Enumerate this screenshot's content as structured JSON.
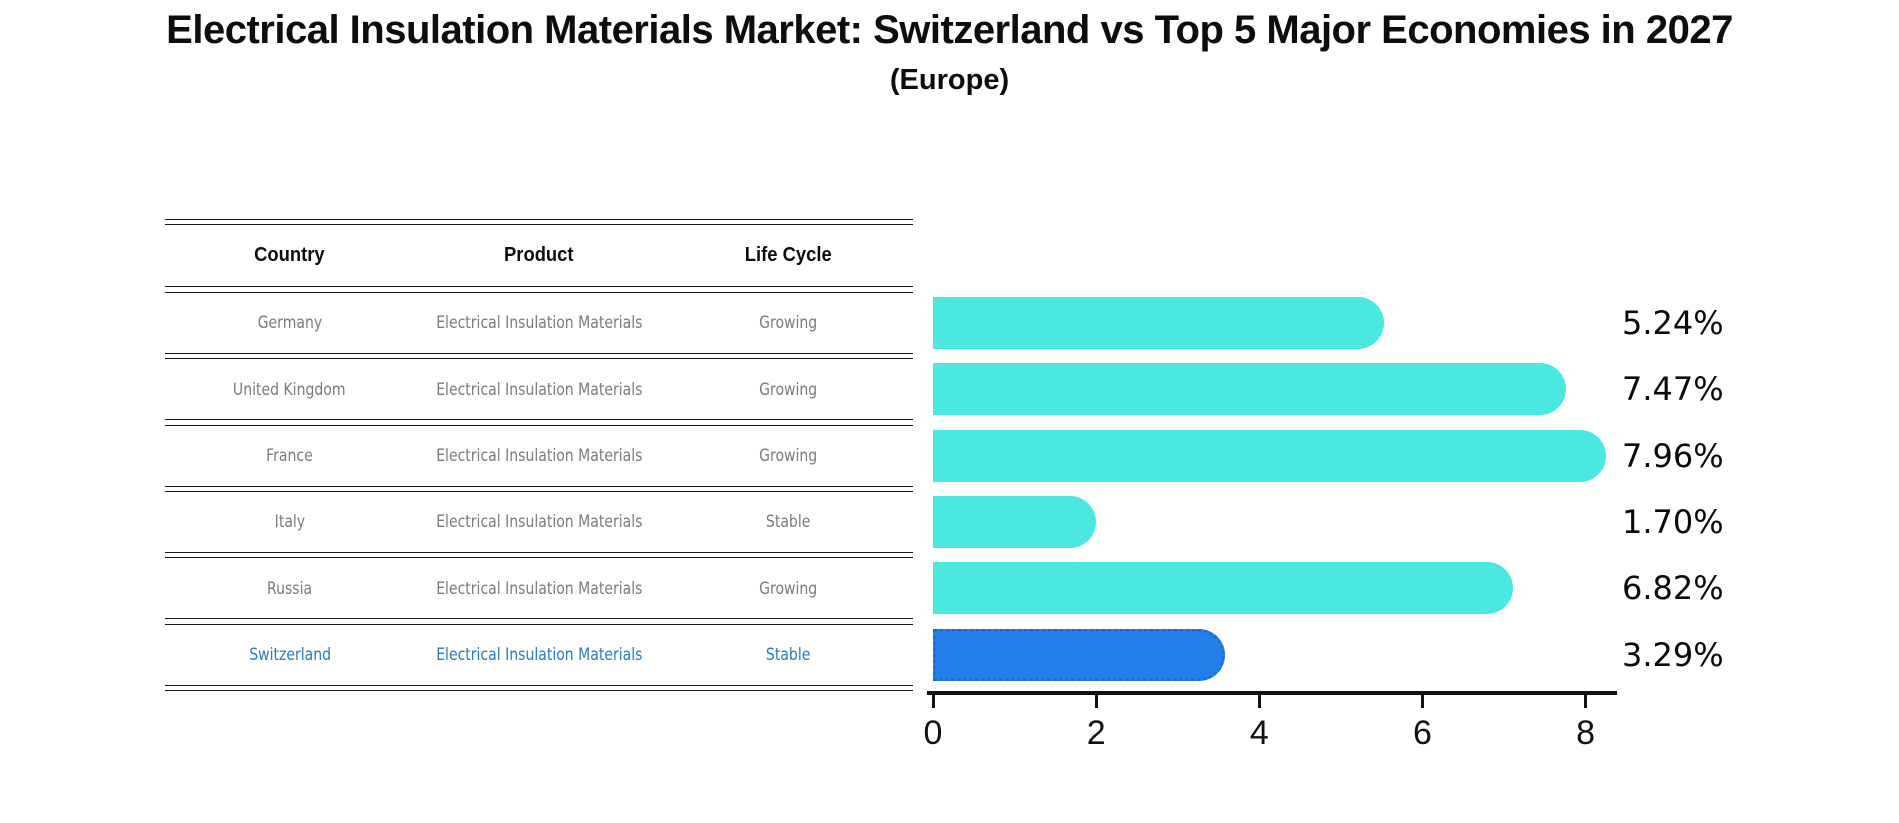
{
  "header": {
    "title": "Electrical Insulation Materials Market: Switzerland vs Top 5 Major Economies in 2027",
    "subtitle": "(Europe)"
  },
  "table": {
    "columns": [
      "Country",
      "Product",
      "Life Cycle"
    ],
    "rows": [
      {
        "country": "Germany",
        "product": "Electrical Insulation Materials",
        "life_cycle": "Growing",
        "highlight": false
      },
      {
        "country": "United Kingdom",
        "product": "Electrical Insulation Materials",
        "life_cycle": "Growing",
        "highlight": false
      },
      {
        "country": "France",
        "product": "Electrical Insulation Materials",
        "life_cycle": "Growing",
        "highlight": false
      },
      {
        "country": "Italy",
        "product": "Electrical Insulation Materials",
        "life_cycle": "Stable",
        "highlight": false
      },
      {
        "country": "Russia",
        "product": "Electrical Insulation Materials",
        "life_cycle": "Growing",
        "highlight": false
      },
      {
        "country": "Switzerland",
        "product": "Electrical Insulation Materials",
        "life_cycle": "Stable",
        "highlight": true
      }
    ]
  },
  "chart_data": {
    "type": "bar",
    "orientation": "horizontal",
    "title": "Electrical Insulation Materials Market: Switzerland vs Top 5 Major Economies in 2027 (Europe)",
    "categories": [
      "Germany",
      "United Kingdom",
      "France",
      "Italy",
      "Russia",
      "Switzerland"
    ],
    "values": [
      5.24,
      7.47,
      7.96,
      1.7,
      6.82,
      3.29
    ],
    "value_labels": [
      "5.24%",
      "7.47%",
      "7.96%",
      "1.70%",
      "6.82%",
      "3.29%"
    ],
    "unit": "%",
    "x_ticks": [
      0,
      2,
      4,
      6,
      8
    ],
    "xlim": [
      0,
      8.36
    ],
    "grid": false,
    "legend": false,
    "highlight_category": "Switzerland",
    "xlabel": "",
    "ylabel": ""
  },
  "colors": {
    "bar": "#4ae8e0",
    "highlight_bar": "#2380ea",
    "highlight_bar_border": "#1e6ad6",
    "highlight_text": "#2979c9",
    "table_text": "#7b7b7b",
    "line": "#161616"
  }
}
